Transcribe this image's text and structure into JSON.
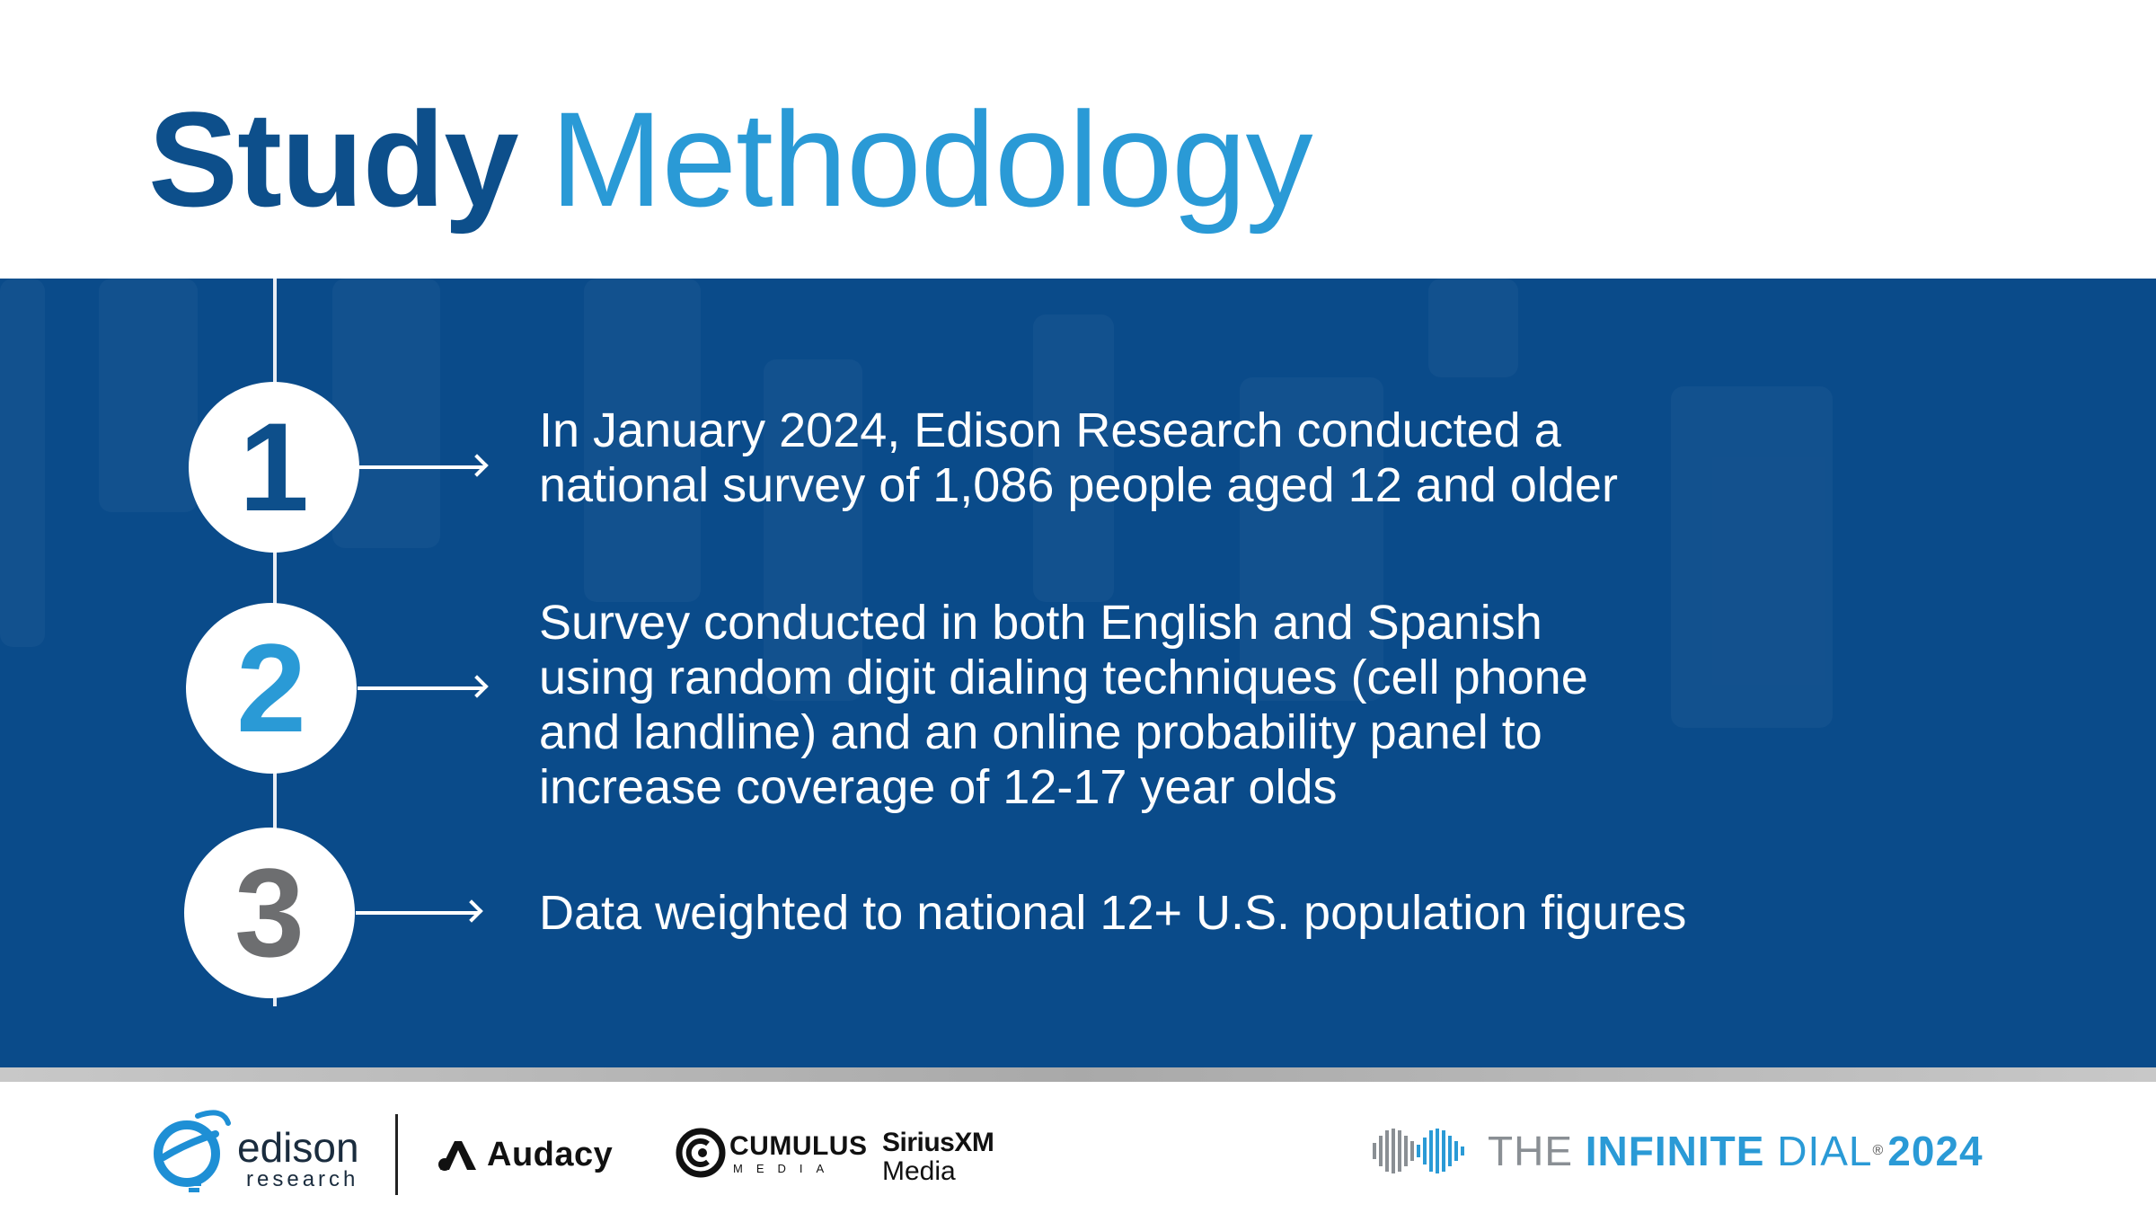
{
  "title": {
    "bold": "Study",
    "light": "Methodology"
  },
  "steps": [
    {
      "number": "1",
      "lines": [
        "In January 2024, Edison Research conducted a",
        "national survey of 1,086 people aged 12 and older"
      ]
    },
    {
      "number": "2",
      "lines": [
        "Survey conducted in both English and Spanish",
        "using random digit dialing techniques (cell phone",
        "and landline) and an online probability panel to",
        "increase coverage of 12-17 year olds"
      ]
    },
    {
      "number": "3",
      "lines": [
        "Data weighted to national 12+ U.S. population figures"
      ]
    }
  ],
  "colors": {
    "navy": "#0a4b8a",
    "title_dark": "#0d4f8b",
    "accent_blue": "#2a9ad6",
    "step1_number": "#0d4f8b",
    "step2_number": "#2a9ad6",
    "step3_number": "#6d6e70"
  },
  "footer": {
    "edison": {
      "name": "edison",
      "sub": "research",
      "icon": "edison-swirl-icon"
    },
    "audacy": {
      "name": "Audacy",
      "icon": "audacy-a-icon"
    },
    "cumulus": {
      "name": "CUMULUS",
      "sub": "MEDIA",
      "icon": "cumulus-c-icon"
    },
    "siriusxm": {
      "name": "SiriusXM",
      "sub": "Media"
    },
    "infinite_dial": {
      "the": "THE ",
      "infinite": "INFINITE",
      "dial": " DIAL",
      "reg": "®",
      "year": "2024",
      "icon": "infinity-waveform-icon"
    }
  }
}
